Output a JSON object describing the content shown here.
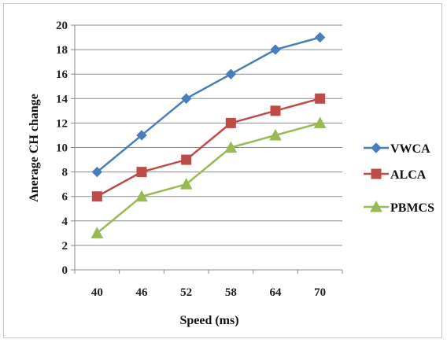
{
  "chart_data": {
    "type": "line",
    "categories": [
      "40",
      "46",
      "52",
      "58",
      "64",
      "70"
    ],
    "xlabel": "Speed (ms)",
    "ylabel": "Anerage CH change",
    "ylim": [
      0,
      20
    ],
    "yticks": [
      "0",
      "2",
      "4",
      "6",
      "8",
      "10",
      "12",
      "14",
      "16",
      "18",
      "20"
    ],
    "grid": true,
    "legend_position": "right",
    "series": [
      {
        "name": "VWCA",
        "values": [
          8,
          11,
          14,
          16,
          18,
          19
        ],
        "color": "#4a7ebb",
        "marker": "diamond"
      },
      {
        "name": "ALCA",
        "values": [
          6,
          8,
          9,
          12,
          13,
          14
        ],
        "color": "#be4b48",
        "marker": "square"
      },
      {
        "name": "PBMCS",
        "values": [
          3,
          6,
          7,
          10,
          11,
          12
        ],
        "color": "#98b954",
        "marker": "triangle"
      }
    ]
  }
}
